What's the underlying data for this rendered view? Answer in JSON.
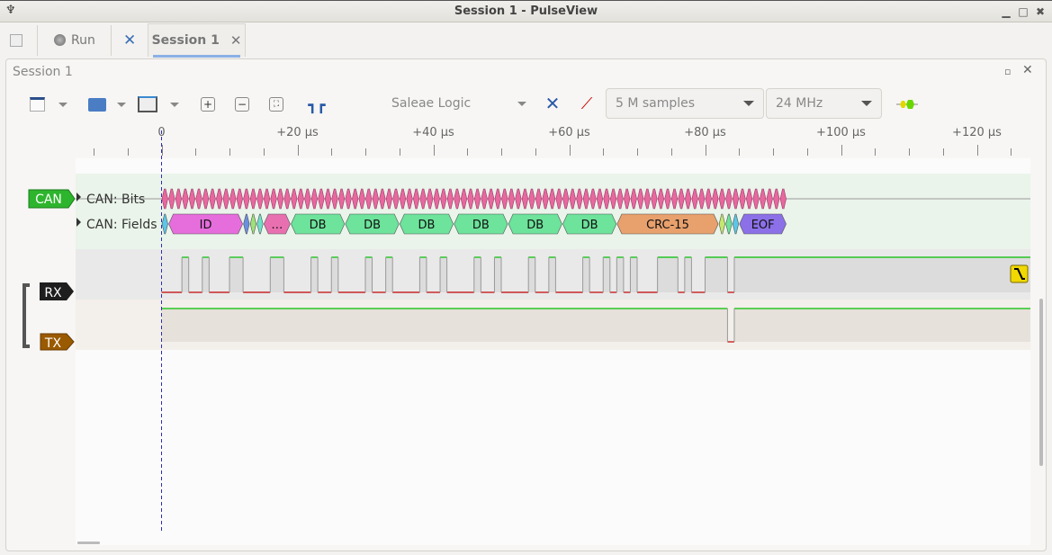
{
  "window": {
    "title": "Session 1 - PulseView"
  },
  "tabbar": {
    "run_label": "Run",
    "session_tab": "Session 1"
  },
  "session": {
    "title": "Session 1"
  },
  "toolbar": {
    "device": "Saleae Logic",
    "samples": "5 M samples",
    "samplerate": "24 MHz"
  },
  "ruler": {
    "unit": "µs",
    "labels": [
      "0",
      "+20 µs",
      "+40 µs",
      "+60 µs",
      "+80 µs",
      "+100 µs",
      "+120 µs"
    ],
    "label_times": [
      0,
      20,
      40,
      60,
      80,
      100,
      120
    ],
    "minor_step": 5,
    "range": [
      -10,
      128
    ]
  },
  "signals": {
    "can": {
      "label": "CAN",
      "color": "#2db52d"
    },
    "rx": {
      "label": "RX",
      "color": "#1e1e1e"
    },
    "tx": {
      "label": "TX",
      "color": "#9a5a00"
    }
  },
  "decoder": {
    "rows": [
      "CAN: Bits",
      "CAN: Fields"
    ],
    "bit_count": 92,
    "bit_color": "#e8689e",
    "fields": [
      {
        "label": "",
        "start": 0,
        "end": 1,
        "color": "#5bc6e8"
      },
      {
        "label": "ID",
        "start": 1,
        "end": 12,
        "color": "#e66ddc"
      },
      {
        "label": "",
        "start": 12,
        "end": 13,
        "color": "#6a8fe0"
      },
      {
        "label": "",
        "start": 13,
        "end": 14,
        "color": "#9ee07a"
      },
      {
        "label": "",
        "start": 14,
        "end": 15,
        "color": "#6ee0c8"
      },
      {
        "label": "…",
        "start": 15,
        "end": 19,
        "color": "#e870b0"
      },
      {
        "label": "DB",
        "start": 19,
        "end": 27,
        "color": "#6de39b"
      },
      {
        "label": "DB",
        "start": 27,
        "end": 35,
        "color": "#6de39b"
      },
      {
        "label": "DB",
        "start": 35,
        "end": 43,
        "color": "#6de39b"
      },
      {
        "label": "DB",
        "start": 43,
        "end": 51,
        "color": "#6de39b"
      },
      {
        "label": "DB",
        "start": 51,
        "end": 59,
        "color": "#6de39b"
      },
      {
        "label": "DB",
        "start": 59,
        "end": 67,
        "color": "#6de39b"
      },
      {
        "label": "CRC-15",
        "start": 67,
        "end": 82,
        "color": "#e8a06d"
      },
      {
        "label": "",
        "start": 82,
        "end": 83,
        "color": "#c4e86d"
      },
      {
        "label": "",
        "start": 83,
        "end": 84,
        "color": "#6de39b"
      },
      {
        "label": "",
        "start": 84,
        "end": 85,
        "color": "#5bc6e8"
      },
      {
        "label": "EOF",
        "start": 85,
        "end": 92,
        "color": "#8c70e8"
      }
    ]
  },
  "rx_high_pulses_us": [
    [
      3,
      4
    ],
    [
      6,
      7
    ],
    [
      10,
      12
    ],
    [
      16,
      18
    ],
    [
      22,
      23
    ],
    [
      25,
      26
    ],
    [
      30,
      31
    ],
    [
      33,
      34
    ],
    [
      38,
      39
    ],
    [
      41,
      42
    ],
    [
      46,
      47
    ],
    [
      49,
      50
    ],
    [
      54,
      55
    ],
    [
      57,
      58
    ],
    [
      62,
      63
    ],
    [
      65,
      66
    ],
    [
      67,
      68
    ],
    [
      69,
      70
    ],
    [
      73,
      76
    ],
    [
      77,
      78
    ],
    [
      80,
      83.3
    ],
    [
      84.3,
      128
    ]
  ],
  "tx_low_pulses_us": [
    [
      83.3,
      84.3
    ]
  ],
  "colors": {
    "high": "#00c000",
    "low": "#c00000",
    "trigger_badge": "#f0d800"
  }
}
